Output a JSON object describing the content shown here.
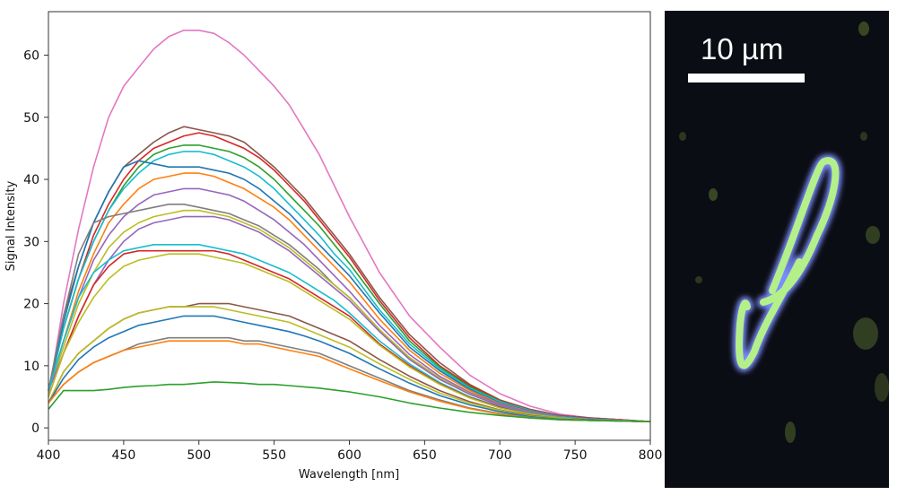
{
  "chart_data": {
    "type": "line",
    "title": "",
    "xlabel": "Wavelength [nm]",
    "ylabel": "Signal Intensity",
    "xlim": [
      400,
      800
    ],
    "ylim": [
      -2,
      67
    ],
    "x_ticks": [
      400,
      450,
      500,
      550,
      600,
      650,
      700,
      750,
      800
    ],
    "y_ticks": [
      0,
      10,
      20,
      30,
      40,
      50,
      60
    ],
    "grid": false,
    "legend": "none",
    "x": [
      400,
      410,
      420,
      430,
      440,
      450,
      460,
      470,
      480,
      490,
      500,
      510,
      520,
      530,
      540,
      550,
      560,
      570,
      580,
      590,
      600,
      620,
      640,
      660,
      680,
      700,
      720,
      740,
      760,
      780,
      800
    ],
    "series": [
      {
        "color": "#e377c2",
        "values": [
          5,
          20,
          32,
          42,
          50,
          55,
          58,
          61,
          63,
          64,
          64,
          63.5,
          62,
          60,
          57.5,
          55,
          52,
          48,
          44,
          39,
          34,
          25,
          18,
          13,
          8.5,
          5.5,
          3.5,
          2.2,
          1.6,
          1.3,
          1.0
        ]
      },
      {
        "color": "#8c564b",
        "values": [
          6,
          18,
          26,
          33,
          38,
          42,
          44,
          46,
          47.5,
          48.5,
          48,
          47.5,
          47,
          46,
          44,
          42,
          39.5,
          37,
          34,
          31,
          28,
          21,
          15,
          10.5,
          7,
          4.5,
          3,
          2,
          1.6,
          1.3,
          1.0
        ]
      },
      {
        "color": "#d62728",
        "values": [
          6,
          16,
          24,
          31,
          36,
          40,
          43,
          45,
          46,
          47,
          47.5,
          47,
          46,
          45,
          43.5,
          41.5,
          39,
          36.5,
          33.5,
          30.5,
          27.5,
          20.5,
          14.5,
          10,
          6.8,
          4.4,
          2.9,
          2,
          1.6,
          1.3,
          1.0
        ]
      },
      {
        "color": "#2ca02c",
        "values": [
          6,
          16,
          24,
          30,
          35,
          39,
          42,
          44,
          45,
          45.5,
          45.5,
          45,
          44.5,
          43.5,
          42,
          40,
          37.5,
          35,
          32.5,
          29.5,
          26.5,
          20,
          14,
          9.8,
          6.6,
          4.3,
          2.8,
          1.9,
          1.5,
          1.2,
          1.0
        ]
      },
      {
        "color": "#17becf",
        "values": [
          6,
          16,
          24,
          30,
          35,
          38.5,
          41,
          43,
          44,
          44.5,
          44.5,
          44,
          43,
          42,
          40.5,
          38.5,
          36,
          33.5,
          31,
          28,
          25.5,
          19,
          13.5,
          9.5,
          6.4,
          4.2,
          2.8,
          1.9,
          1.5,
          1.2,
          1.0
        ]
      },
      {
        "color": "#1f77b4",
        "values": [
          6,
          17,
          26,
          33,
          38,
          42,
          43,
          42.5,
          42,
          42,
          42,
          41.5,
          41,
          40,
          38.5,
          36.5,
          34.5,
          32,
          29.5,
          27,
          24.5,
          18.5,
          13,
          9.2,
          6.2,
          4,
          2.7,
          1.9,
          1.5,
          1.2,
          1.0
        ]
      },
      {
        "color": "#ff7f0e",
        "values": [
          6,
          14,
          22,
          28,
          33,
          36,
          38.5,
          40,
          40.5,
          41,
          41,
          40.5,
          39.5,
          38.5,
          37,
          35.5,
          33.5,
          31,
          28.5,
          26,
          23.5,
          17.5,
          12.5,
          8.8,
          6,
          3.9,
          2.6,
          1.8,
          1.4,
          1.2,
          1.0
        ]
      },
      {
        "color": "#9467bd",
        "values": [
          6,
          14,
          21,
          27,
          31,
          34,
          36,
          37.5,
          38,
          38.5,
          38.5,
          38,
          37.5,
          36.5,
          35,
          33.5,
          31.5,
          29.5,
          27,
          24.5,
          22,
          16.5,
          11.8,
          8.3,
          5.7,
          3.8,
          2.5,
          1.8,
          1.4,
          1.2,
          1.0
        ]
      },
      {
        "color": "#7f7f7f",
        "values": [
          6,
          18,
          28,
          33,
          34,
          34.5,
          35,
          35.5,
          36,
          36,
          35.5,
          35,
          34.5,
          33.5,
          32.5,
          31,
          29.5,
          27.5,
          25.5,
          23,
          21,
          15.8,
          11.3,
          8,
          5.5,
          3.6,
          2.4,
          1.7,
          1.4,
          1.2,
          1.0
        ]
      },
      {
        "color": "#bcbd22",
        "values": [
          6,
          13,
          20,
          25,
          29,
          31.5,
          33,
          34,
          34.5,
          35,
          35,
          34.5,
          34,
          33,
          32,
          30.5,
          29,
          27,
          25,
          23,
          21,
          15.8,
          11.3,
          8,
          5.5,
          3.6,
          2.4,
          1.7,
          1.4,
          1.2,
          1.0
        ]
      },
      {
        "color": "#9467bd",
        "values": [
          6,
          12,
          18,
          23,
          27,
          30,
          32,
          33,
          33.5,
          34,
          34,
          34,
          33.5,
          32.5,
          31.5,
          30,
          28.5,
          26.5,
          24.5,
          22.5,
          20.5,
          15.5,
          11,
          7.8,
          5.4,
          3.6,
          2.4,
          1.7,
          1.4,
          1.2,
          1.0
        ]
      },
      {
        "color": "#17becf",
        "values": [
          6,
          14,
          21,
          25,
          27,
          28.5,
          29,
          29.5,
          29.5,
          29.5,
          29.5,
          29,
          28.5,
          28,
          27,
          26,
          25,
          23.5,
          22,
          20.5,
          18.5,
          14,
          10.3,
          7.3,
          5,
          3.4,
          2.3,
          1.7,
          1.4,
          1.2,
          1.0
        ]
      },
      {
        "color": "#d62728",
        "values": [
          5,
          12,
          18,
          23,
          26,
          28,
          28.5,
          28.5,
          28.5,
          28.5,
          28.5,
          28.5,
          28,
          27,
          26,
          25,
          24,
          22.5,
          21,
          19.5,
          18,
          13.5,
          10,
          7.1,
          4.9,
          3.3,
          2.2,
          1.6,
          1.3,
          1.1,
          1.0
        ]
      },
      {
        "color": "#bcbd22",
        "values": [
          5,
          12,
          17,
          21,
          24,
          26,
          27,
          27.5,
          28,
          28,
          28,
          27.5,
          27,
          26.5,
          25.5,
          24.5,
          23.5,
          22,
          20.5,
          19,
          17.5,
          13.3,
          9.8,
          7,
          4.8,
          3.2,
          2.2,
          1.6,
          1.3,
          1.1,
          1.0
        ]
      },
      {
        "color": "#8c564b",
        "values": [
          4,
          9,
          12,
          14,
          16,
          17.5,
          18.5,
          19,
          19.5,
          19.5,
          20,
          20,
          20,
          19.5,
          19,
          18.5,
          18,
          17,
          16,
          15,
          14,
          11,
          8.3,
          6,
          4.2,
          2.9,
          2,
          1.5,
          1.3,
          1.1,
          1.0
        ]
      },
      {
        "color": "#bcbd22",
        "values": [
          4,
          9,
          12,
          14,
          16,
          17.5,
          18.5,
          19,
          19.5,
          19.5,
          19.5,
          19.5,
          19,
          18.5,
          18,
          17.5,
          17,
          16,
          15,
          14,
          13,
          10.3,
          7.8,
          5.6,
          4,
          2.8,
          1.9,
          1.5,
          1.2,
          1.1,
          1.0
        ]
      },
      {
        "color": "#1f77b4",
        "values": [
          4,
          8,
          11,
          13,
          14.5,
          15.5,
          16.5,
          17,
          17.5,
          18,
          18,
          18,
          17.5,
          17,
          16.5,
          16,
          15.5,
          14.8,
          14,
          13,
          12,
          9.5,
          7.2,
          5.2,
          3.7,
          2.6,
          1.8,
          1.4,
          1.2,
          1.1,
          1.0
        ]
      },
      {
        "color": "#7f7f7f",
        "values": [
          4,
          7,
          9,
          10.5,
          11.5,
          12.5,
          13.5,
          14,
          14.5,
          14.5,
          14.5,
          14.5,
          14.5,
          14,
          14,
          13.5,
          13,
          12.5,
          12,
          11,
          10,
          8,
          6,
          4.5,
          3.2,
          2.3,
          1.7,
          1.3,
          1.2,
          1.1,
          1.0
        ]
      },
      {
        "color": "#ff7f0e",
        "values": [
          4,
          7,
          9,
          10.5,
          11.5,
          12.5,
          13,
          13.5,
          14,
          14,
          14,
          14,
          14,
          13.5,
          13.5,
          13,
          12.5,
          12,
          11.5,
          10.5,
          9.5,
          7.6,
          5.8,
          4.3,
          3.1,
          2.2,
          1.6,
          1.3,
          1.2,
          1.1,
          1.0
        ]
      },
      {
        "color": "#2ca02c",
        "values": [
          3,
          6,
          6,
          6,
          6.2,
          6.5,
          6.7,
          6.8,
          7,
          7,
          7.2,
          7.4,
          7.3,
          7.2,
          7,
          7,
          6.8,
          6.6,
          6.4,
          6.1,
          5.8,
          5,
          4,
          3.2,
          2.5,
          2,
          1.6,
          1.3,
          1.2,
          1.1,
          1.0
        ]
      }
    ]
  },
  "micrograph": {
    "scale_bar_label": "10 µm",
    "filament_color": "#b4f08a",
    "halo_color": "#7a8cff",
    "background_color": "#0b0d14"
  }
}
